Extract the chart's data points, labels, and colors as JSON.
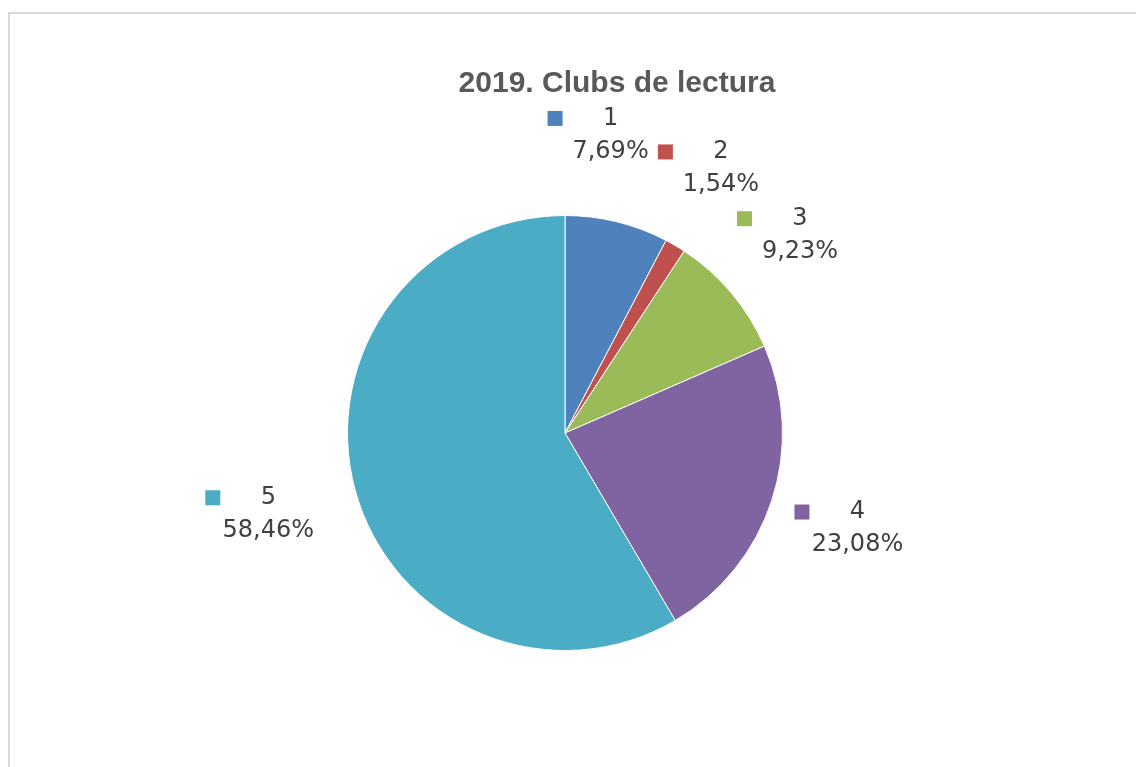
{
  "chart_data": {
    "type": "pie",
    "title": "2019. Clubs de lectura",
    "categories": [
      "1",
      "2",
      "3",
      "4",
      "5"
    ],
    "values": [
      7.69,
      1.54,
      9.23,
      23.08,
      58.46
    ],
    "colors": [
      "#4f81bd",
      "#c0504d",
      "#9bbb59",
      "#8064a2",
      "#4bacc6"
    ],
    "value_labels": [
      "7,69%",
      "1,54%",
      "9,23%",
      "23,08%",
      "58,46%"
    ],
    "legend": "top left"
  }
}
